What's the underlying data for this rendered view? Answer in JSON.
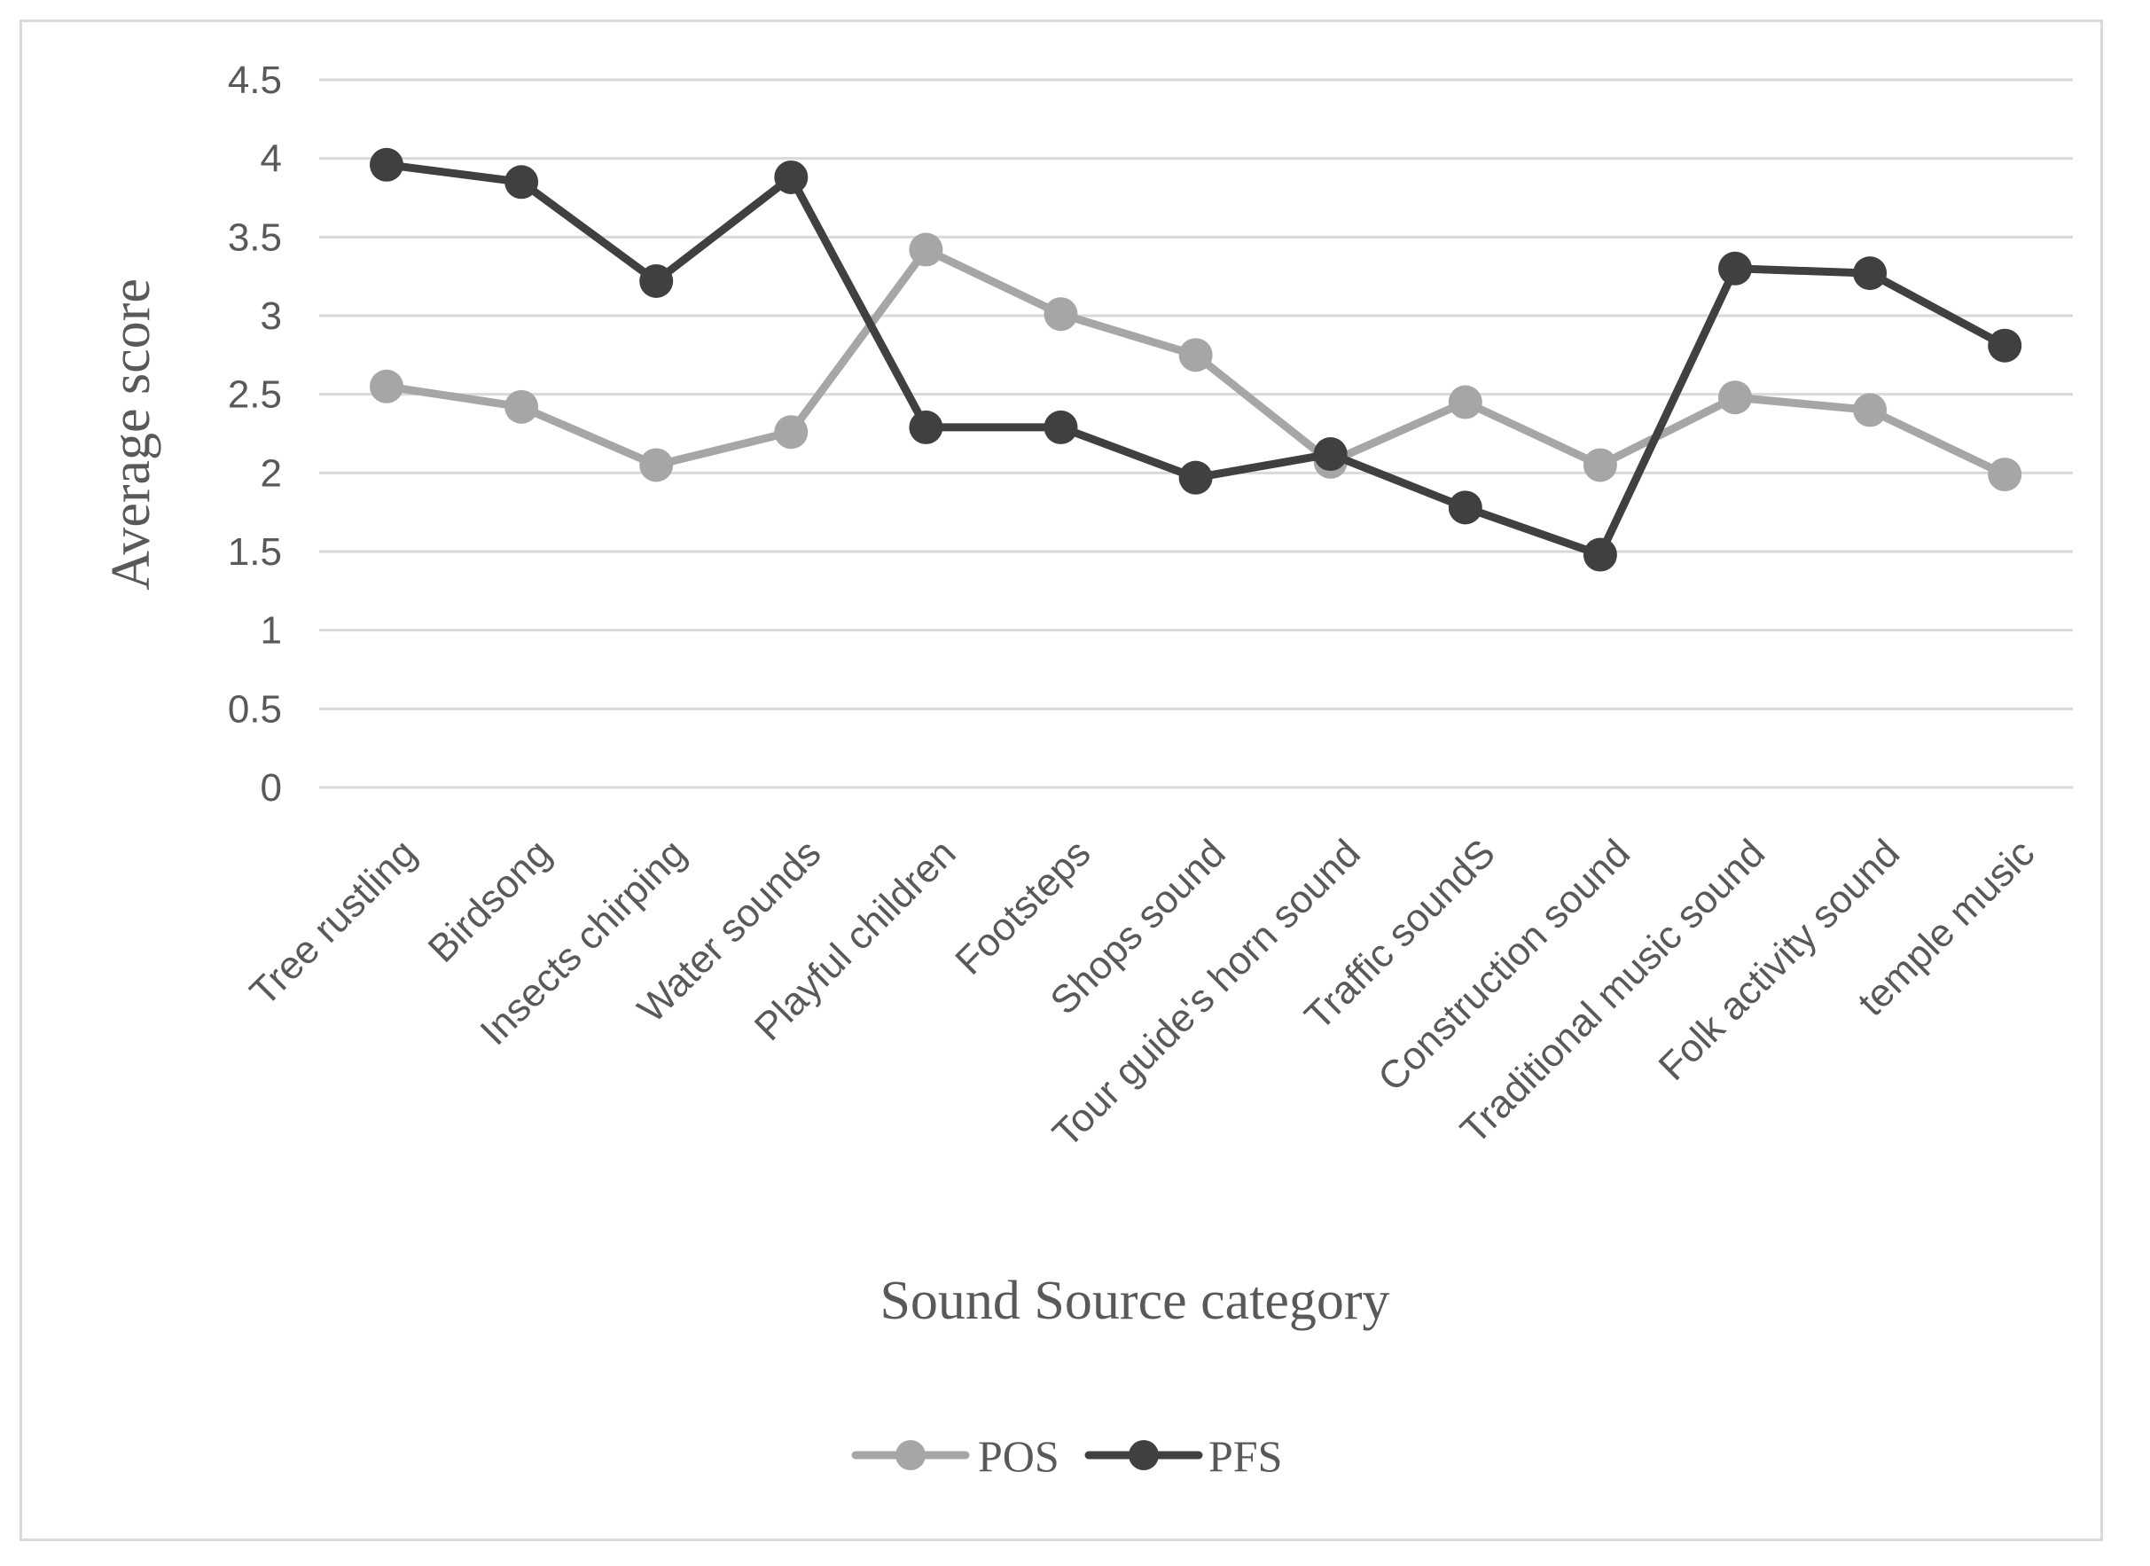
{
  "chart_data": {
    "type": "line",
    "title": "",
    "xlabel": "Sound Source category",
    "ylabel": "Average score",
    "ylim": [
      0,
      4.5
    ],
    "yticks": [
      "0",
      "0.5",
      "1",
      "1.5",
      "2",
      "2.5",
      "3",
      "3.5",
      "4",
      "4.5"
    ],
    "grid": true,
    "legend_position": "bottom",
    "categories": [
      "Tree rustling",
      "Birdsong",
      "Insects chirping",
      "Water sounds",
      "Playful children",
      "Footsteps",
      "Shops sound",
      "Tour guide's horn sound",
      "Traffic soundS",
      "Construction sound",
      "Traditional music sound",
      "Folk activity sound",
      "temple music"
    ],
    "series": [
      {
        "name": "POS",
        "color": "#a6a6a6",
        "values": [
          2.55,
          2.42,
          2.05,
          2.26,
          3.42,
          3.01,
          2.75,
          2.07,
          2.45,
          2.05,
          2.48,
          2.4,
          1.99
        ]
      },
      {
        "name": "PFS",
        "color": "#404040",
        "values": [
          3.96,
          3.85,
          3.22,
          3.88,
          2.29,
          2.29,
          1.97,
          2.12,
          1.78,
          1.48,
          3.3,
          3.27,
          2.81
        ]
      }
    ]
  }
}
